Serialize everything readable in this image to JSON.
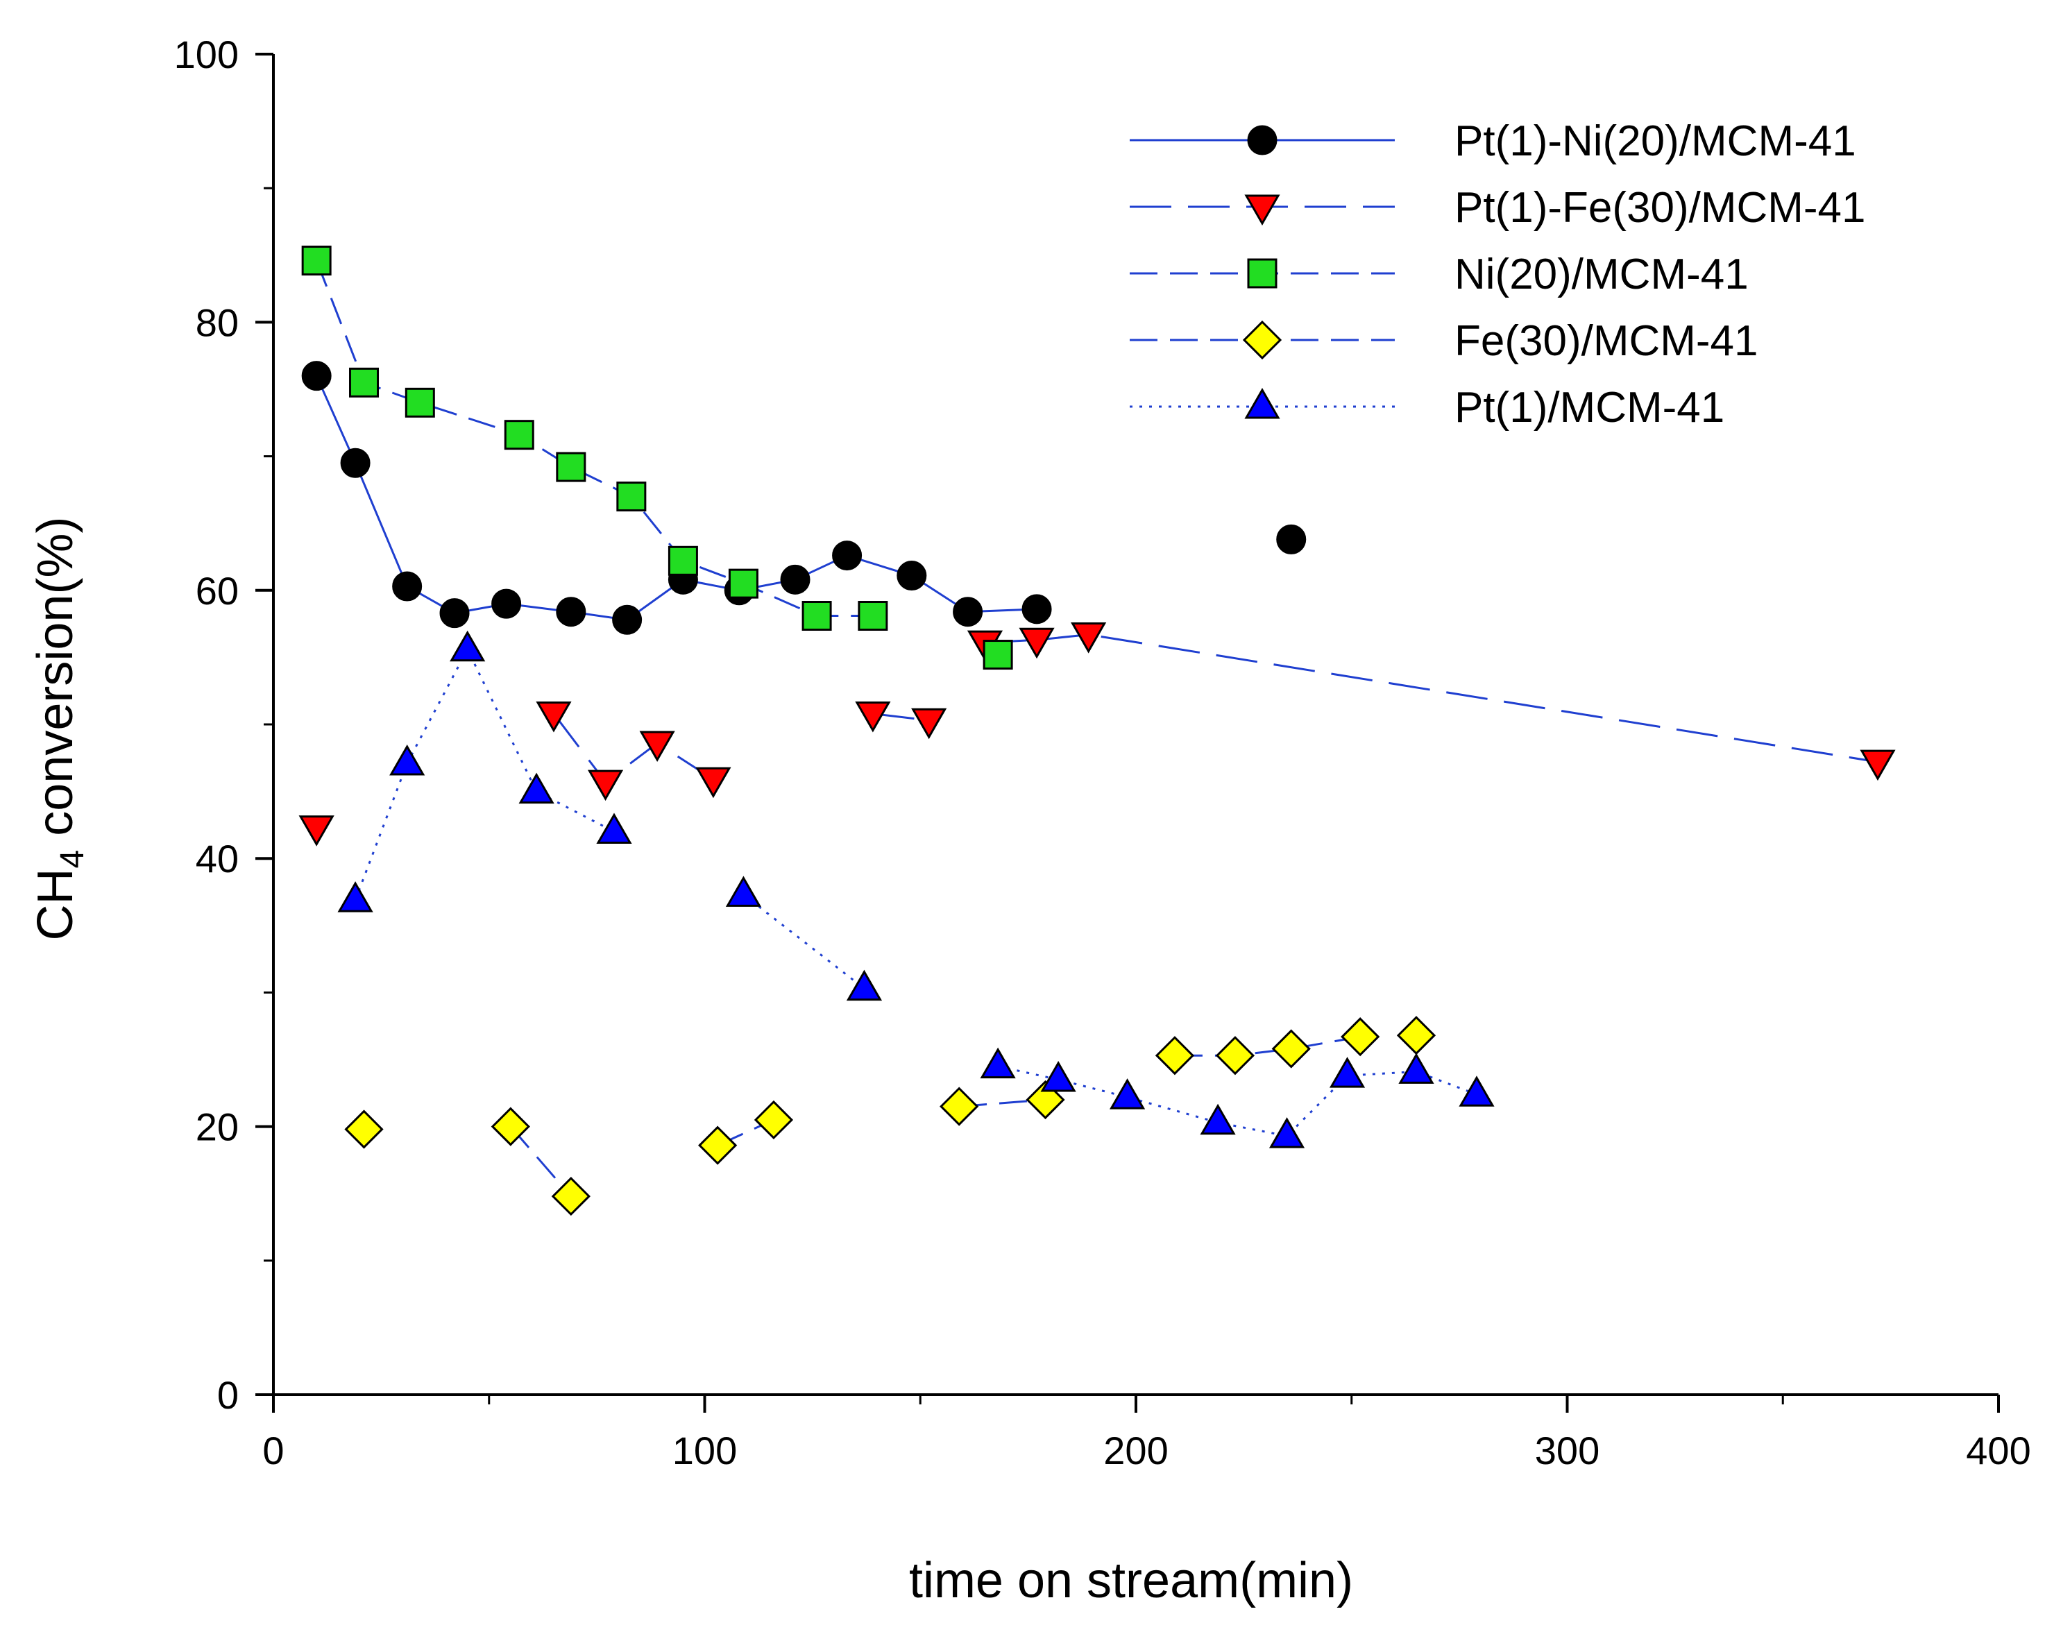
{
  "chart_data": {
    "type": "scatter",
    "xlabel": "time on stream(min)",
    "ylabel_main": "CH",
    "ylabel_sub": "4",
    "ylabel_rest": " conversion(%)",
    "xlim": [
      0,
      400
    ],
    "ylim": [
      0,
      100
    ],
    "x_ticks": [
      "0",
      "100",
      "200",
      "300",
      "400"
    ],
    "y_ticks": [
      "0",
      "20",
      "40",
      "60",
      "80",
      "100"
    ],
    "grid": false,
    "legend_position": "top-right",
    "series": [
      {
        "name": "Pt(1)-Ni(20)/MCM-41",
        "marker": "circle",
        "marker_color": "#000000",
        "line_color": "#1f3fd0",
        "line_style": "solid",
        "points": [
          [
            10,
            76
          ],
          [
            19,
            69.5
          ],
          [
            31,
            60.3
          ],
          [
            42,
            58.3
          ],
          [
            54,
            59
          ],
          [
            69,
            58.4
          ],
          [
            82,
            57.8
          ],
          [
            95,
            60.8
          ],
          [
            108,
            60
          ],
          [
            121,
            60.8
          ],
          [
            133,
            62.6
          ],
          [
            148,
            61.1
          ],
          [
            161,
            58.4
          ],
          [
            177,
            58.6
          ],
          [
            236,
            63.8
          ]
        ],
        "segments": [
          [
            0,
            13
          ]
        ]
      },
      {
        "name": "Pt(1)-Fe(30)/MCM-41",
        "marker": "triangle-down",
        "marker_color": "#ff0000",
        "line_color": "#1f3fd0",
        "line_style": "long-dash",
        "points": [
          [
            10,
            42.3
          ],
          [
            65,
            50.8
          ],
          [
            77,
            45.7
          ],
          [
            89,
            48.6
          ],
          [
            102,
            45.9
          ],
          [
            139,
            50.8
          ],
          [
            152,
            50.3
          ],
          [
            165,
            56.1
          ],
          [
            177,
            56.3
          ],
          [
            189,
            56.7
          ],
          [
            372,
            47.2
          ]
        ],
        "segments": [
          [
            1,
            4
          ],
          [
            5,
            6
          ],
          [
            7,
            10
          ]
        ]
      },
      {
        "name": "Ni(20)/MCM-41",
        "marker": "square",
        "marker_color": "#22dd22",
        "line_color": "#1f3fd0",
        "line_style": "dash",
        "points": [
          [
            10,
            84.6
          ],
          [
            21,
            75.5
          ],
          [
            34,
            74
          ],
          [
            57,
            71.6
          ],
          [
            69,
            69.2
          ],
          [
            83,
            67
          ],
          [
            95,
            62.2
          ],
          [
            109,
            60.5
          ],
          [
            126,
            58.1
          ],
          [
            139,
            58.1
          ],
          [
            168,
            55.2
          ]
        ],
        "segments": [
          [
            0,
            9
          ]
        ]
      },
      {
        "name": "Fe(30)/MCM-41",
        "marker": "diamond",
        "marker_color": "#ffff00",
        "line_color": "#1f3fd0",
        "line_style": "dash",
        "points": [
          [
            21,
            19.8
          ],
          [
            55,
            20
          ],
          [
            69,
            14.8
          ],
          [
            103,
            18.6
          ],
          [
            116,
            20.5
          ],
          [
            159,
            21.5
          ],
          [
            179,
            22
          ],
          [
            209,
            25.3
          ],
          [
            223,
            25.3
          ],
          [
            236,
            25.8
          ],
          [
            252,
            26.7
          ],
          [
            265,
            26.8
          ]
        ],
        "segments": [
          [
            1,
            2
          ],
          [
            3,
            4
          ],
          [
            5,
            6
          ],
          [
            7,
            10
          ]
        ]
      },
      {
        "name": "Pt(1)/MCM-41",
        "marker": "triangle-up",
        "marker_color": "#0000ff",
        "line_color": "#1f3fd0",
        "line_style": "dot",
        "points": [
          [
            19,
            36.9
          ],
          [
            31,
            47.1
          ],
          [
            45,
            55.6
          ],
          [
            61,
            45
          ],
          [
            79,
            42
          ],
          [
            109,
            37.3
          ],
          [
            137,
            30.3
          ],
          [
            168,
            24.5
          ],
          [
            182,
            23.5
          ],
          [
            198,
            22.2
          ],
          [
            219,
            20.3
          ],
          [
            235,
            19.3
          ],
          [
            249,
            23.8
          ],
          [
            265,
            24.1
          ],
          [
            279,
            22.4
          ]
        ],
        "segments": [
          [
            0,
            4
          ],
          [
            5,
            6
          ],
          [
            7,
            14
          ]
        ]
      }
    ]
  }
}
